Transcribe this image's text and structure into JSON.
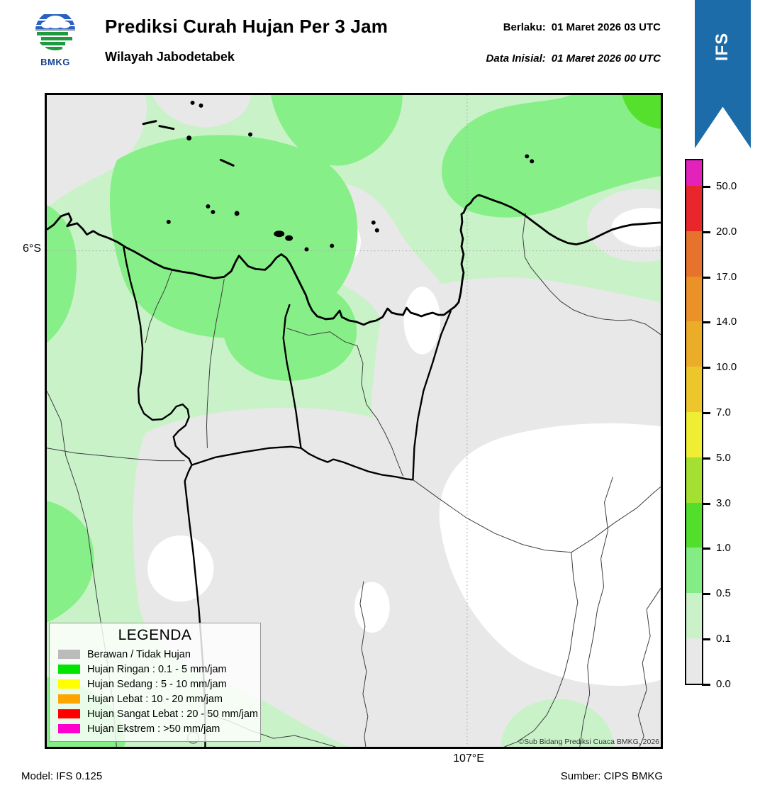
{
  "header": {
    "title": "Prediksi Curah Hujan Per 3 Jam",
    "subtitle": "Wilayah Jabodetabek",
    "valid_label": "Berlaku:",
    "valid_value": "01 Maret 2026 03 UTC",
    "init_label": "Data Inisial:",
    "init_value": "01 Maret 2026 00 UTC",
    "logo_text": "BMKG"
  },
  "ribbon": {
    "label": "IFS",
    "color": "#1B6CA8"
  },
  "colorbar": {
    "tick_labels": [
      "50.0",
      "20.0",
      "17.0",
      "14.0",
      "10.0",
      "7.0",
      "5.0",
      "3.0",
      "1.0",
      "0.5",
      "0.1",
      "0.0"
    ],
    "segment_colors_top_to_bottom": [
      "#E322BB",
      "#E8262B",
      "#E7722C",
      "#EA9228",
      "#EBAD27",
      "#EDC62B",
      "#F0EE33",
      "#A4E032",
      "#52DF2C",
      "#84EC84",
      "#C9F2C9",
      "#E8E8E8"
    ]
  },
  "legend": {
    "title": "LEGENDA",
    "items": [
      {
        "label": "Berawan / Tidak Hujan",
        "color": "#BBBBBB"
      },
      {
        "label": "Hujan Ringan : 0.1 - 5 mm/jam",
        "color": "#00E400"
      },
      {
        "label": "Hujan Sedang : 5 - 10 mm/jam",
        "color": "#FFFF00"
      },
      {
        "label": "Hujan Lebat : 10 - 20 mm/jam",
        "color": "#FFA500"
      },
      {
        "label": "Hujan Sangat Lebat : 20 - 50 mm/jam",
        "color": "#FF0000"
      },
      {
        "label": "Hujan Ekstrem : >50 mm/jam",
        "color": "#FF00CC"
      }
    ]
  },
  "map": {
    "lat_label": "6°S",
    "lon_label": "107°E",
    "copyright": "©Sub Bidang Prediksi Cuaca BMKG, 2026",
    "palette": {
      "pale": "#C9F2C9",
      "mid": "#87EF87",
      "bright": "#55E02D",
      "gray": "#E8E8E8",
      "white": "#FFFFFF"
    }
  },
  "footer": {
    "model": "Model: IFS 0.125",
    "source": "Sumber: CIPS BMKG"
  }
}
